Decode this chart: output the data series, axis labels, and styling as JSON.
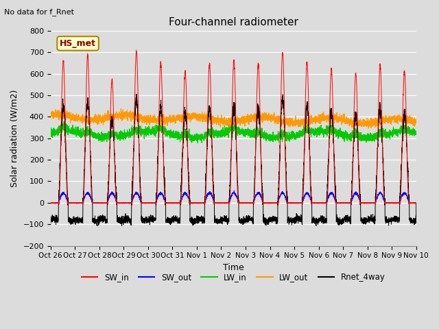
{
  "title": "Four-channel radiometer",
  "top_left_text": "No data for f_Rnet",
  "annotation_box": "HS_met",
  "xlabel": "Time",
  "ylabel": "Solar radiation (W/m2)",
  "ylim": [
    -200,
    800
  ],
  "yticks": [
    -200,
    -100,
    0,
    100,
    200,
    300,
    400,
    500,
    600,
    700,
    800
  ],
  "xtick_labels": [
    "Oct 26",
    "Oct 27",
    "Oct 28",
    "Oct 29",
    "Oct 30",
    "Oct 31",
    "Nov 1",
    "Nov 2",
    "Nov 3",
    "Nov 4",
    "Nov 5",
    "Nov 6",
    "Nov 7",
    "Nov 8",
    "Nov 9",
    "Nov 10"
  ],
  "background_color": "#dcdcdc",
  "plot_bg_color": "#dcdcdc",
  "legend_entries": [
    "SW_in",
    "SW_out",
    "LW_in",
    "LW_out",
    "Rnet_4way"
  ],
  "legend_colors": [
    "#ff0000",
    "#0000ff",
    "#00cc00",
    "#ff9900",
    "#000000"
  ],
  "line_colors": {
    "SW_in": "#ff0000",
    "SW_out": "#0000ff",
    "LW_in": "#00cc00",
    "LW_out": "#ff9900",
    "Rnet_4way": "#000000"
  },
  "num_days": 15,
  "points_per_day": 288,
  "sw_in_peaks": [
    660,
    685,
    570,
    705,
    650,
    610,
    645,
    660,
    645,
    700,
    655,
    620,
    605,
    640,
    610
  ],
  "figsize": [
    6.4,
    4.8
  ],
  "dpi": 100
}
